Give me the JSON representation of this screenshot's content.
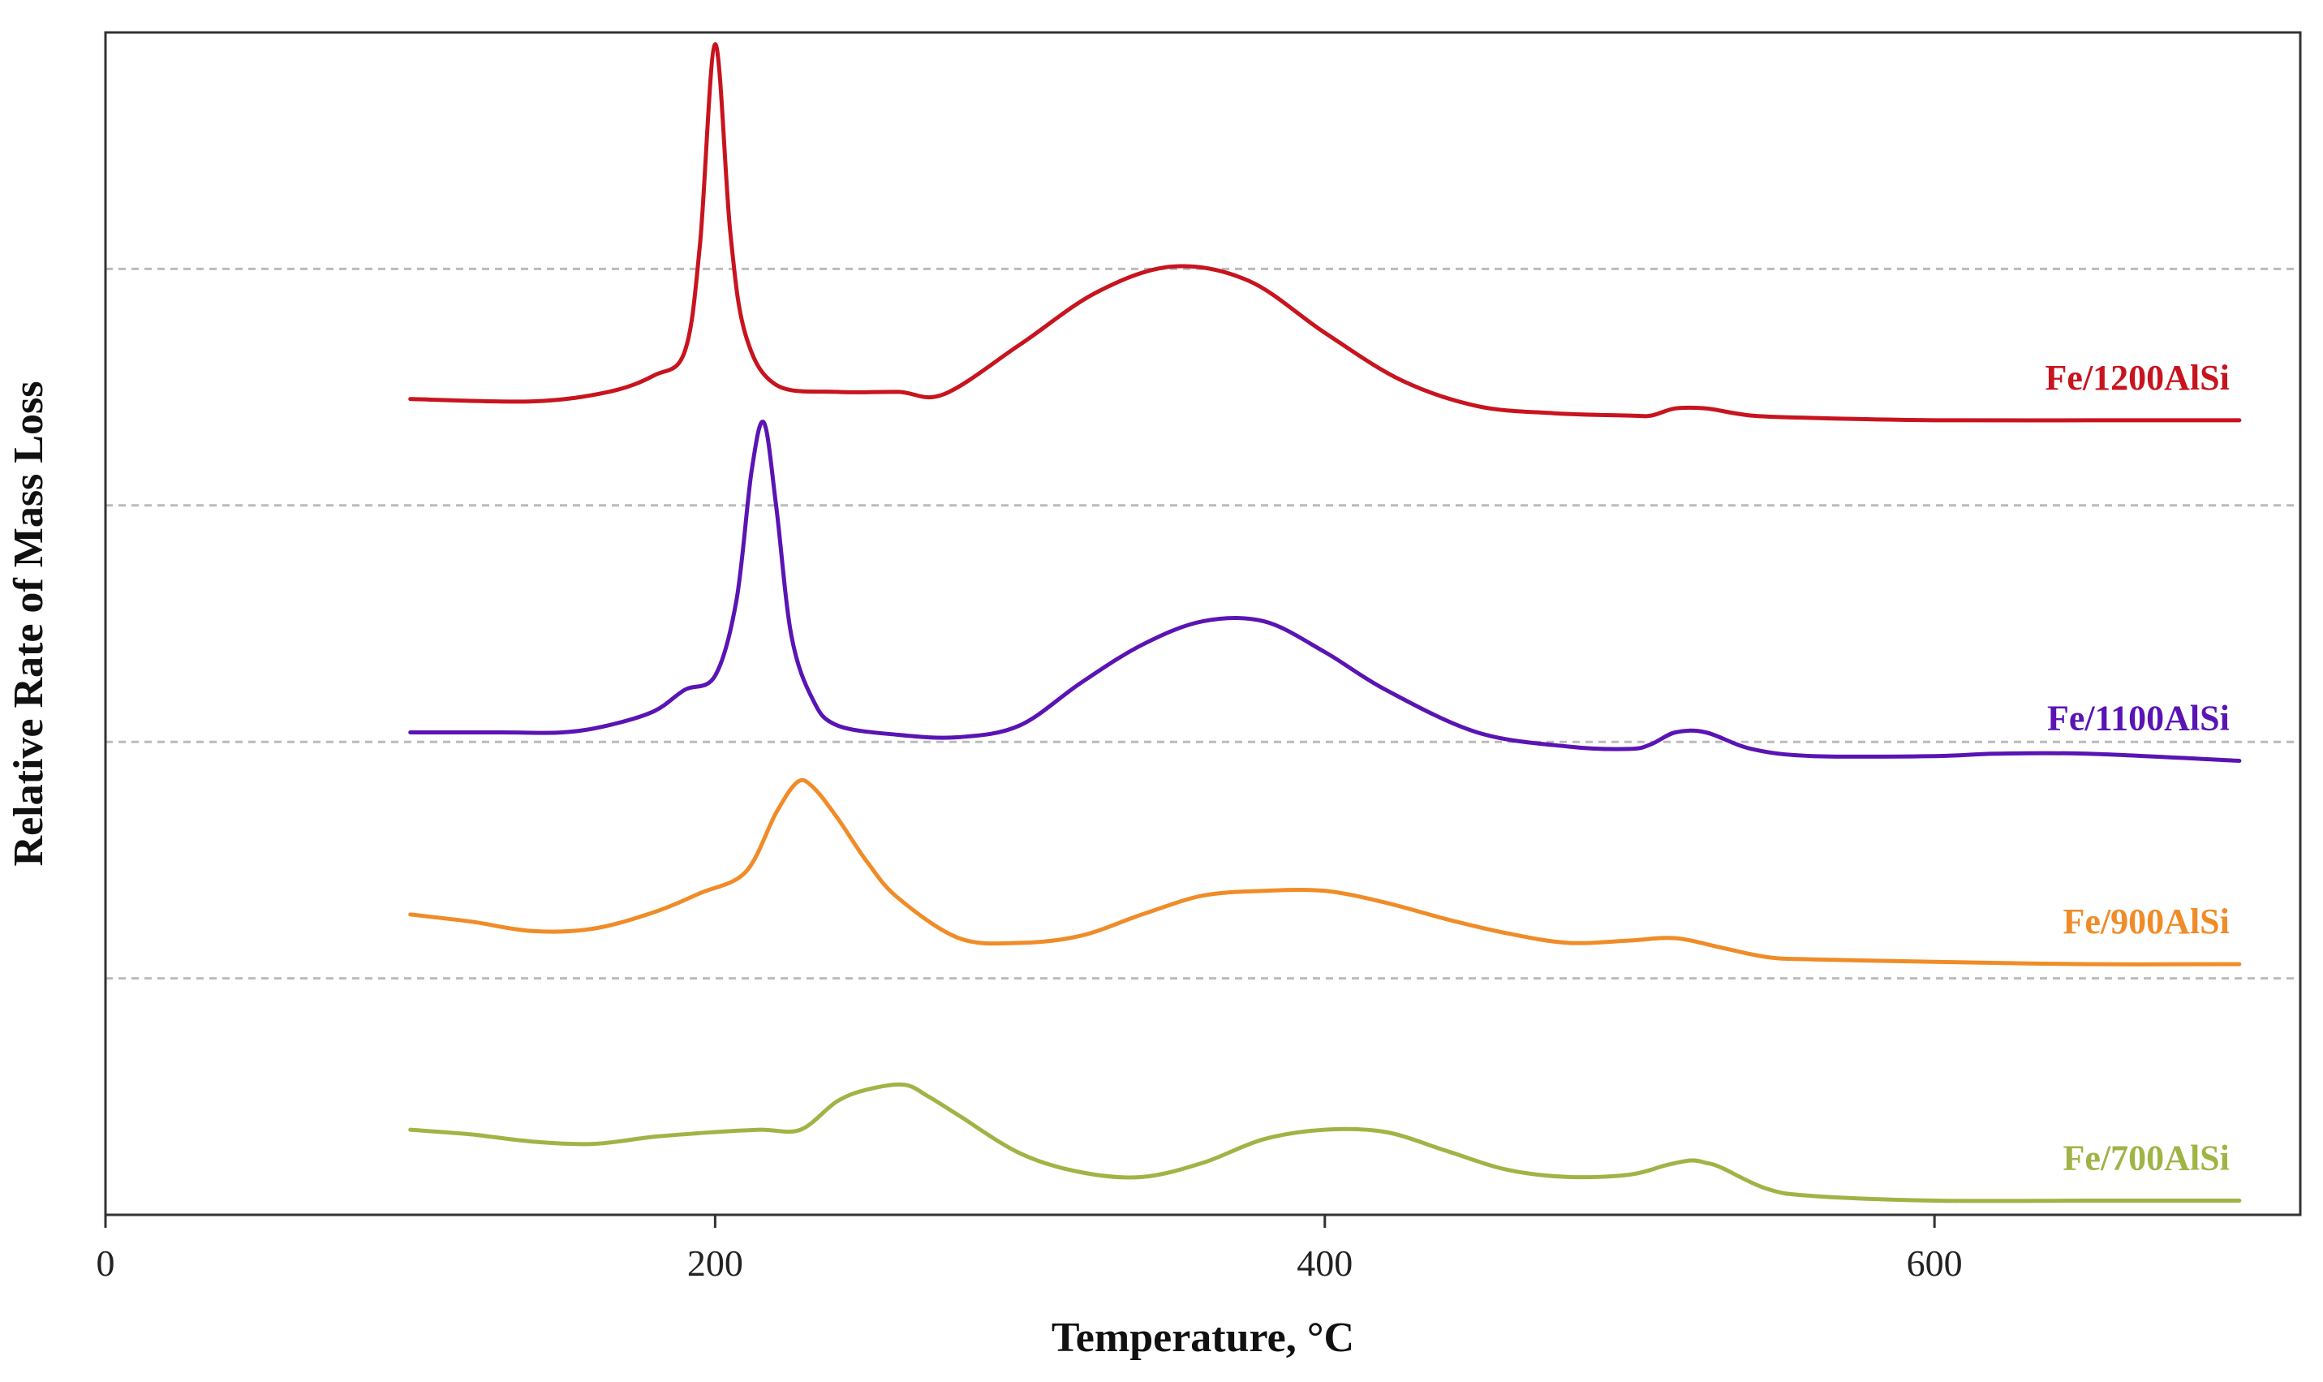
{
  "chart_data": {
    "type": "line",
    "title": "",
    "xlabel": "Temperature, °C",
    "ylabel": "Relative Rate of Mass Loss",
    "xlim": [
      0,
      720
    ],
    "ylim": [
      0,
      5
    ],
    "xticks": [
      0,
      200,
      400,
      600
    ],
    "xtick_labels": [
      "0",
      "200",
      "400",
      "600"
    ],
    "grid": "horizontal dashed",
    "gridlines_y": [
      1,
      2,
      3,
      4
    ],
    "legend": "inline labels at right end of each curve",
    "series": [
      {
        "name": "Fe/1200AlSi",
        "color": "#c8141e",
        "x": [
          100,
          140,
          165,
          180,
          190,
          195,
          200,
          205,
          210,
          220,
          240,
          260,
          275,
          300,
          325,
          350,
          375,
          400,
          425,
          450,
          475,
          500,
          507,
          515,
          525,
          540,
          560,
          600,
          650,
          700
        ],
        "y": [
          3.45,
          3.44,
          3.48,
          3.55,
          3.65,
          4.1,
          4.95,
          4.15,
          3.72,
          3.51,
          3.48,
          3.48,
          3.47,
          3.68,
          3.9,
          4.01,
          3.95,
          3.73,
          3.53,
          3.42,
          3.39,
          3.38,
          3.38,
          3.41,
          3.41,
          3.38,
          3.37,
          3.36,
          3.36,
          3.36
        ]
      },
      {
        "name": "Fe/1100AlSi",
        "color": "#5a14b4",
        "x": [
          100,
          130,
          150,
          165,
          180,
          190,
          200,
          207,
          212,
          216,
          220,
          225,
          232,
          240,
          260,
          280,
          300,
          320,
          340,
          360,
          380,
          400,
          420,
          450,
          480,
          500,
          507,
          515,
          525,
          540,
          560,
          600,
          620,
          650,
          700
        ],
        "y": [
          2.04,
          2.04,
          2.04,
          2.07,
          2.13,
          2.22,
          2.28,
          2.6,
          3.15,
          3.35,
          3.0,
          2.45,
          2.18,
          2.07,
          2.03,
          2.02,
          2.07,
          2.25,
          2.41,
          2.51,
          2.51,
          2.38,
          2.22,
          2.04,
          1.98,
          1.97,
          1.99,
          2.04,
          2.04,
          1.97,
          1.94,
          1.94,
          1.95,
          1.95,
          1.92
        ]
      },
      {
        "name": "Fe/900AlSi",
        "color": "#f08c28",
        "x": [
          100,
          120,
          140,
          160,
          180,
          195,
          210,
          220,
          227,
          232,
          240,
          250,
          260,
          280,
          300,
          320,
          340,
          360,
          380,
          400,
          420,
          440,
          460,
          480,
          500,
          515,
          530,
          545,
          560,
          600,
          650,
          700
        ],
        "y": [
          1.27,
          1.24,
          1.2,
          1.21,
          1.28,
          1.36,
          1.45,
          1.7,
          1.83,
          1.81,
          1.68,
          1.49,
          1.34,
          1.17,
          1.15,
          1.18,
          1.27,
          1.35,
          1.37,
          1.37,
          1.32,
          1.25,
          1.19,
          1.15,
          1.16,
          1.17,
          1.13,
          1.09,
          1.08,
          1.07,
          1.06,
          1.06
        ]
      },
      {
        "name": "Fe/700AlSi",
        "color": "#a0b446",
        "x": [
          100,
          120,
          140,
          160,
          180,
          200,
          215,
          228,
          240,
          250,
          262,
          270,
          280,
          300,
          320,
          340,
          360,
          380,
          400,
          420,
          440,
          460,
          480,
          500,
          512,
          520,
          525,
          530,
          545,
          560,
          600,
          650,
          700
        ],
        "y": [
          0.36,
          0.34,
          0.31,
          0.3,
          0.33,
          0.35,
          0.36,
          0.36,
          0.48,
          0.53,
          0.55,
          0.5,
          0.42,
          0.26,
          0.18,
          0.16,
          0.22,
          0.32,
          0.36,
          0.35,
          0.27,
          0.19,
          0.16,
          0.17,
          0.21,
          0.23,
          0.22,
          0.2,
          0.11,
          0.08,
          0.06,
          0.06,
          0.06
        ]
      }
    ]
  }
}
